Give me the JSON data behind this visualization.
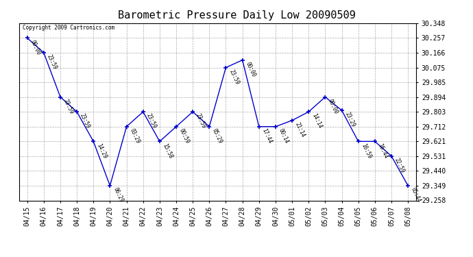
{
  "title": "Barometric Pressure Daily Low 20090509",
  "copyright_text": "Copyright 2009 Cartronics.com",
  "x_labels": [
    "04/15",
    "04/16",
    "04/17",
    "04/18",
    "04/19",
    "04/20",
    "04/21",
    "04/22",
    "04/23",
    "04/24",
    "04/25",
    "04/26",
    "04/27",
    "04/28",
    "04/29",
    "04/30",
    "05/01",
    "05/02",
    "05/03",
    "05/04",
    "05/05",
    "05/06",
    "05/07",
    "05/08"
  ],
  "y_values": [
    30.257,
    30.166,
    29.894,
    29.803,
    29.621,
    29.349,
    29.712,
    29.803,
    29.621,
    29.712,
    29.803,
    29.712,
    30.075,
    30.121,
    29.712,
    29.712,
    29.75,
    29.803,
    29.894,
    29.812,
    29.621,
    29.621,
    29.531,
    29.349
  ],
  "time_labels": [
    "00:00",
    "23:59",
    "23:59",
    "23:59",
    "14:29",
    "06:29",
    "03:29",
    "23:59",
    "15:58",
    "00:59",
    "23:59",
    "05:29",
    "23:59",
    "00:00",
    "17:44",
    "00:14",
    "21:14",
    "14:14",
    "00:00",
    "23:29",
    "16:59",
    "16:44",
    "22:59",
    "05:44"
  ],
  "y_min": 29.258,
  "y_max": 30.348,
  "line_color": "#0000cc",
  "grid_color": "#aaaaaa",
  "bg_color": "#ffffff",
  "title_fontsize": 11,
  "tick_fontsize": 7,
  "y_ticks": [
    29.258,
    29.349,
    29.44,
    29.531,
    29.621,
    29.712,
    29.803,
    29.894,
    29.985,
    30.075,
    30.166,
    30.257,
    30.348
  ]
}
